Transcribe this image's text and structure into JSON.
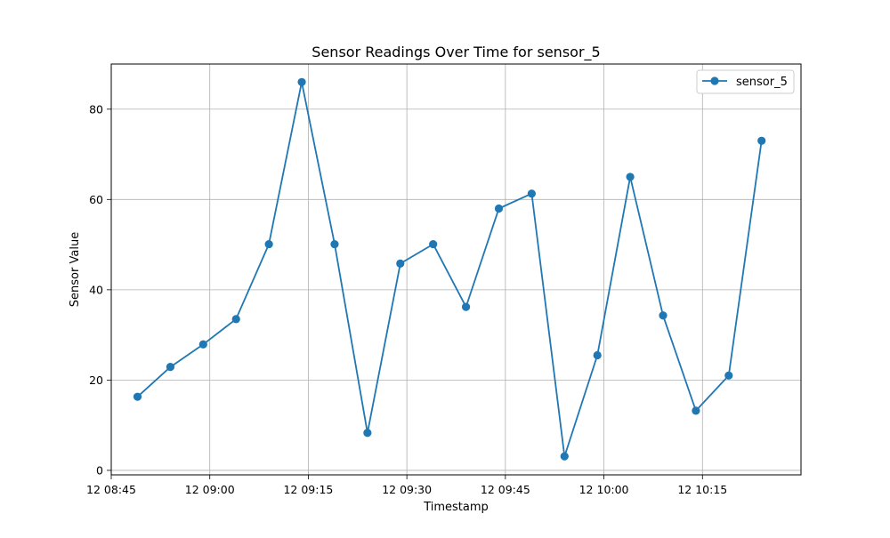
{
  "chart_data": {
    "type": "line",
    "title": "Sensor Readings Over Time for sensor_5",
    "xlabel": "Timestamp",
    "ylabel": "Sensor Value",
    "x_tick_labels": [
      "12 08:45",
      "12 09:00",
      "12 09:15",
      "12 09:30",
      "12 09:45",
      "12 10:00",
      "12 10:15"
    ],
    "y_ticks": [
      0,
      20,
      40,
      60,
      80
    ],
    "xlim": [
      "08:45",
      "10:30"
    ],
    "ylim": [
      -1,
      90
    ],
    "grid": true,
    "legend_position": "top-right",
    "x": [
      "08:49",
      "08:54",
      "08:59",
      "09:04",
      "09:09",
      "09:14",
      "09:19",
      "09:24",
      "09:29",
      "09:34",
      "09:39",
      "09:44",
      "09:49",
      "09:54",
      "09:59",
      "10:04",
      "10:09",
      "10:14",
      "10:19",
      "10:24"
    ],
    "series": [
      {
        "name": "sensor_5",
        "color": "#1f77b4",
        "marker": "circle",
        "values": [
          16.3,
          22.9,
          27.9,
          33.5,
          50.1,
          86.0,
          50.1,
          8.3,
          45.8,
          50.1,
          36.2,
          58.0,
          61.3,
          3.1,
          25.5,
          65.0,
          34.3,
          13.2,
          21.0,
          73.0
        ]
      }
    ]
  }
}
